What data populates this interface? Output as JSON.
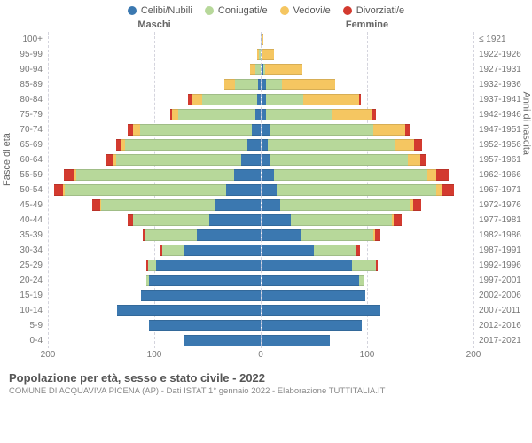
{
  "legend": [
    {
      "label": "Celibi/Nubili",
      "color": "#3b78b0"
    },
    {
      "label": "Coniugati/e",
      "color": "#b7d89a"
    },
    {
      "label": "Vedovi/e",
      "color": "#f5c661"
    },
    {
      "label": "Divorziati/e",
      "color": "#d33a2f"
    }
  ],
  "axis_left_label": "Fasce di età",
  "axis_right_label": "Anni di nascita",
  "header_male": "Maschi",
  "header_female": "Femmine",
  "x_max": 200,
  "x_ticks_male": [
    200,
    100,
    0
  ],
  "x_ticks_female": [
    0,
    100,
    200
  ],
  "grid_color": "#d4d4dd",
  "center_line_color": "#a8b8d8",
  "background_color": "#ffffff",
  "label_fontsize": 10,
  "rows": [
    {
      "age": "100+",
      "year": "≤ 1921",
      "m": {
        "single": 0,
        "married": 0,
        "widow": 0,
        "divorced": 0
      },
      "f": {
        "single": 0,
        "married": 0,
        "widow": 2,
        "divorced": 0
      }
    },
    {
      "age": "95-99",
      "year": "1922-1926",
      "m": {
        "single": 0,
        "married": 1,
        "widow": 2,
        "divorced": 0
      },
      "f": {
        "single": 0,
        "married": 0,
        "widow": 12,
        "divorced": 0
      }
    },
    {
      "age": "90-94",
      "year": "1927-1931",
      "m": {
        "single": 0,
        "married": 5,
        "widow": 5,
        "divorced": 0
      },
      "f": {
        "single": 2,
        "married": 2,
        "widow": 35,
        "divorced": 0
      }
    },
    {
      "age": "85-89",
      "year": "1932-1936",
      "m": {
        "single": 2,
        "married": 22,
        "widow": 10,
        "divorced": 0
      },
      "f": {
        "single": 5,
        "married": 15,
        "widow": 50,
        "divorced": 0
      }
    },
    {
      "age": "80-84",
      "year": "1937-1941",
      "m": {
        "single": 3,
        "married": 52,
        "widow": 10,
        "divorced": 3
      },
      "f": {
        "single": 5,
        "married": 35,
        "widow": 52,
        "divorced": 2
      }
    },
    {
      "age": "75-79",
      "year": "1942-1946",
      "m": {
        "single": 5,
        "married": 72,
        "widow": 6,
        "divorced": 2
      },
      "f": {
        "single": 5,
        "married": 62,
        "widow": 38,
        "divorced": 3
      }
    },
    {
      "age": "70-74",
      "year": "1947-1951",
      "m": {
        "single": 8,
        "married": 105,
        "widow": 7,
        "divorced": 5
      },
      "f": {
        "single": 8,
        "married": 98,
        "widow": 30,
        "divorced": 4
      }
    },
    {
      "age": "65-69",
      "year": "1952-1956",
      "m": {
        "single": 12,
        "married": 115,
        "widow": 4,
        "divorced": 5
      },
      "f": {
        "single": 6,
        "married": 120,
        "widow": 18,
        "divorced": 8
      }
    },
    {
      "age": "60-64",
      "year": "1957-1961",
      "m": {
        "single": 18,
        "married": 118,
        "widow": 3,
        "divorced": 6
      },
      "f": {
        "single": 8,
        "married": 130,
        "widow": 12,
        "divorced": 6
      }
    },
    {
      "age": "55-59",
      "year": "1962-1966",
      "m": {
        "single": 25,
        "married": 148,
        "widow": 3,
        "divorced": 9
      },
      "f": {
        "single": 12,
        "married": 145,
        "widow": 8,
        "divorced": 12
      }
    },
    {
      "age": "50-54",
      "year": "1967-1971",
      "m": {
        "single": 32,
        "married": 152,
        "widow": 2,
        "divorced": 8
      },
      "f": {
        "single": 15,
        "married": 150,
        "widow": 5,
        "divorced": 12
      }
    },
    {
      "age": "45-49",
      "year": "1972-1976",
      "m": {
        "single": 42,
        "married": 108,
        "widow": 1,
        "divorced": 7
      },
      "f": {
        "single": 18,
        "married": 122,
        "widow": 3,
        "divorced": 8
      }
    },
    {
      "age": "40-44",
      "year": "1977-1981",
      "m": {
        "single": 48,
        "married": 72,
        "widow": 0,
        "divorced": 5
      },
      "f": {
        "single": 28,
        "married": 95,
        "widow": 2,
        "divorced": 7
      }
    },
    {
      "age": "35-39",
      "year": "1982-1986",
      "m": {
        "single": 60,
        "married": 48,
        "widow": 0,
        "divorced": 3
      },
      "f": {
        "single": 38,
        "married": 68,
        "widow": 1,
        "divorced": 5
      }
    },
    {
      "age": "30-34",
      "year": "1987-1991",
      "m": {
        "single": 72,
        "married": 20,
        "widow": 0,
        "divorced": 2
      },
      "f": {
        "single": 50,
        "married": 40,
        "widow": 0,
        "divorced": 3
      }
    },
    {
      "age": "25-29",
      "year": "1992-1996",
      "m": {
        "single": 98,
        "married": 8,
        "widow": 0,
        "divorced": 1
      },
      "f": {
        "single": 86,
        "married": 22,
        "widow": 0,
        "divorced": 2
      }
    },
    {
      "age": "20-24",
      "year": "1997-2001",
      "m": {
        "single": 105,
        "married": 2,
        "widow": 0,
        "divorced": 0
      },
      "f": {
        "single": 92,
        "married": 5,
        "widow": 0,
        "divorced": 0
      }
    },
    {
      "age": "15-19",
      "year": "2002-2006",
      "m": {
        "single": 112,
        "married": 0,
        "widow": 0,
        "divorced": 0
      },
      "f": {
        "single": 98,
        "married": 0,
        "widow": 0,
        "divorced": 0
      }
    },
    {
      "age": "10-14",
      "year": "2007-2011",
      "m": {
        "single": 135,
        "married": 0,
        "widow": 0,
        "divorced": 0
      },
      "f": {
        "single": 112,
        "married": 0,
        "widow": 0,
        "divorced": 0
      }
    },
    {
      "age": "5-9",
      "year": "2012-2016",
      "m": {
        "single": 105,
        "married": 0,
        "widow": 0,
        "divorced": 0
      },
      "f": {
        "single": 95,
        "married": 0,
        "widow": 0,
        "divorced": 0
      }
    },
    {
      "age": "0-4",
      "year": "2017-2021",
      "m": {
        "single": 72,
        "married": 0,
        "widow": 0,
        "divorced": 0
      },
      "f": {
        "single": 65,
        "married": 0,
        "widow": 0,
        "divorced": 0
      }
    }
  ],
  "footer": {
    "title": "Popolazione per età, sesso e stato civile - 2022",
    "subtitle": "COMUNE DI ACQUAVIVA PICENA (AP) - Dati ISTAT 1° gennaio 2022 - Elaborazione TUTTITALIA.IT"
  }
}
